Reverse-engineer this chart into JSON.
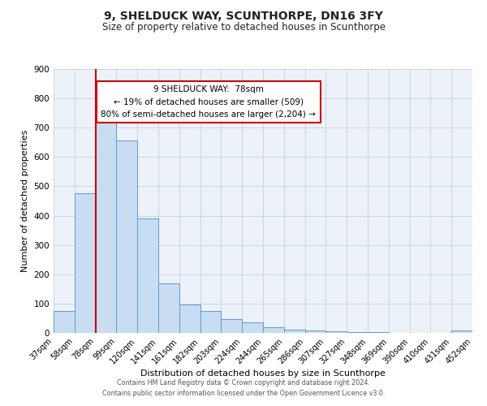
{
  "title1": "9, SHELDUCK WAY, SCUNTHORPE, DN16 3FY",
  "title2": "Size of property relative to detached houses in Scunthorpe",
  "xlabel": "Distribution of detached houses by size in Scunthorpe",
  "ylabel": "Number of detached properties",
  "bar_values": [
    75,
    475,
    735,
    655,
    390,
    170,
    97,
    75,
    47,
    35,
    20,
    10,
    7,
    5,
    3,
    2,
    1,
    0,
    0,
    7
  ],
  "bin_labels": [
    "37sqm",
    "58sqm",
    "78sqm",
    "99sqm",
    "120sqm",
    "141sqm",
    "161sqm",
    "182sqm",
    "203sqm",
    "224sqm",
    "244sqm",
    "265sqm",
    "286sqm",
    "307sqm",
    "327sqm",
    "348sqm",
    "369sqm",
    "390sqm",
    "410sqm",
    "431sqm",
    "452sqm"
  ],
  "bar_color": "#c8ddf2",
  "bar_edge_color": "#5b9bd5",
  "red_line_x": 2,
  "annotation_title": "9 SHELDUCK WAY:  78sqm",
  "annotation_line2": "← 19% of detached houses are smaller (509)",
  "annotation_line3": "80% of semi-detached houses are larger (2,204) →",
  "annotation_box_color": "#ffffff",
  "annotation_box_edge": "#cc0000",
  "ylim": [
    0,
    900
  ],
  "yticks": [
    0,
    100,
    200,
    300,
    400,
    500,
    600,
    700,
    800,
    900
  ],
  "footer1": "Contains HM Land Registry data © Crown copyright and database right 2024.",
  "footer2": "Contains public sector information licensed under the Open Government Licence v3.0.",
  "background_color": "#ffffff",
  "plot_bg_color": "#edf2f9",
  "grid_color": "#c9d4e3"
}
